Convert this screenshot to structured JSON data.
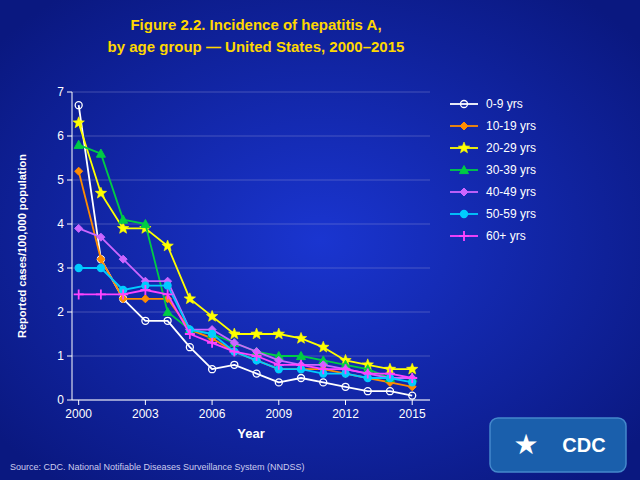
{
  "chart_data": {
    "type": "line",
    "title": "Figure 2.2. Incidence of hepatitis A,",
    "subtitle": "by age group — United States, 2000–2015",
    "x_label": "Year",
    "y_label": "Reported cases/100,000 population",
    "annotations": [
      "Source: CDC. National  Notifiable  Diseases  Surveillance System (NNDSS)",
      "★",
      "CDC"
    ],
    "x": [
      2000,
      2001,
      2002,
      2003,
      2004,
      2005,
      2006,
      2007,
      2008,
      2009,
      2010,
      2011,
      2012,
      2013,
      2014,
      2015
    ],
    "series": [
      {
        "name": "0-9 yrs",
        "color": "#ffffff",
        "marker": "circle-open",
        "values": [
          6.7,
          3.2,
          2.3,
          1.8,
          1.8,
          1.2,
          0.7,
          0.8,
          0.6,
          0.4,
          0.5,
          0.4,
          0.3,
          0.2,
          0.2,
          0.1
        ]
      },
      {
        "name": "10-19 yrs",
        "color": "#FF8C00",
        "marker": "diamond",
        "values": [
          5.2,
          3.2,
          2.3,
          2.3,
          2.3,
          1.6,
          1.4,
          1.1,
          0.9,
          0.7,
          0.7,
          0.7,
          0.6,
          0.5,
          0.4,
          0.3
        ]
      },
      {
        "name": "20-29 yrs",
        "color": "#FFFF00",
        "marker": "star",
        "values": [
          6.3,
          4.7,
          3.9,
          3.9,
          3.5,
          2.3,
          1.9,
          1.5,
          1.5,
          1.5,
          1.4,
          1.2,
          0.9,
          0.8,
          0.7,
          0.7
        ]
      },
      {
        "name": "30-39 yrs",
        "color": "#00CC44",
        "marker": "triangle",
        "values": [
          5.8,
          5.6,
          4.1,
          4.0,
          2.0,
          1.6,
          1.5,
          1.3,
          1.1,
          1.0,
          1.0,
          0.9,
          0.8,
          0.7,
          0.5,
          0.5
        ]
      },
      {
        "name": "40-49 yrs",
        "color": "#CC66FF",
        "marker": "diamond",
        "values": [
          3.9,
          3.7,
          3.2,
          2.7,
          2.7,
          1.6,
          1.6,
          1.3,
          1.1,
          0.9,
          0.8,
          0.8,
          0.7,
          0.6,
          0.5,
          0.5
        ]
      },
      {
        "name": "50-59 yrs",
        "color": "#00CCFF",
        "marker": "circle",
        "values": [
          3.0,
          3.0,
          2.5,
          2.6,
          2.6,
          1.6,
          1.5,
          1.1,
          0.9,
          0.7,
          0.7,
          0.6,
          0.6,
          0.5,
          0.5,
          0.4
        ]
      },
      {
        "name": "60+ yrs",
        "color": "#FF44FF",
        "marker": "plus",
        "values": [
          2.4,
          2.4,
          2.4,
          2.5,
          2.4,
          1.5,
          1.3,
          1.1,
          1.0,
          0.8,
          0.8,
          0.7,
          0.7,
          0.6,
          0.6,
          0.5
        ]
      }
    ],
    "xlim": [
      1999.7,
      2015.8
    ],
    "xticks": [
      2000,
      2003,
      2006,
      2009,
      2012,
      2015
    ],
    "ylim": [
      0,
      7
    ],
    "yticks": [
      0,
      1,
      2,
      3,
      4,
      5,
      6,
      7
    ],
    "grid": true,
    "legend": "right"
  }
}
